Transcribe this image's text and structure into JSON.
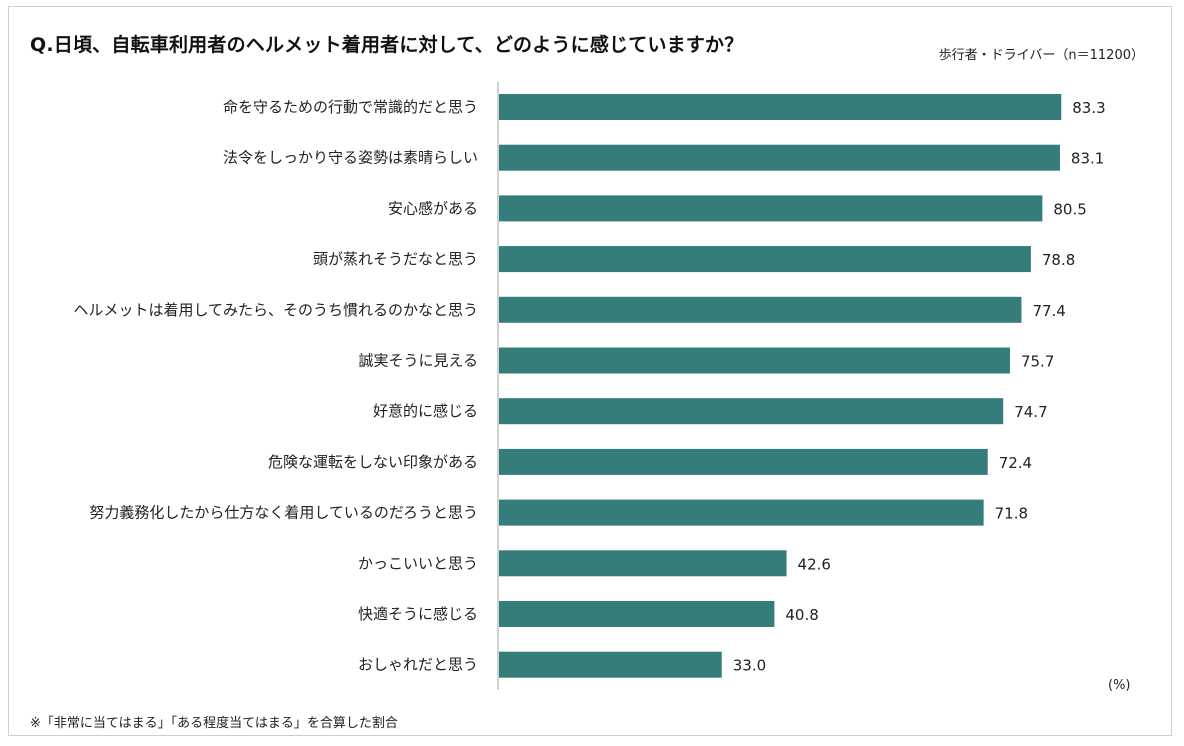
{
  "chart_data": {
    "type": "bar",
    "orientation": "horizontal",
    "title": "Q.日頃、自転車利用者のヘルメット着用者に対して、どのように感じていますか？",
    "subtitle": "歩行者・ドライバー（n＝11200）",
    "unit_label": "(%)",
    "footnote": "※「非常に当てはまる」「ある程度当てはまる」を合算した割合",
    "bar_color": "#357d7a",
    "xlim": [
      0,
      100
    ],
    "categories": [
      "命を守るための行動で常識的だと思う",
      "法令をしっかり守る姿勢は素晴らしい",
      "安心感がある",
      "頭が蒸れそうだなと思う",
      "ヘルメットは着用してみたら、そのうち慣れるのかなと思う",
      "誠実そうに見える",
      "好意的に感じる",
      "危険な運転をしない印象がある",
      "努力義務化したから仕方なく着用しているのだろうと思う",
      "かっこいいと思う",
      "快適そうに感じる",
      "おしゃれだと思う"
    ],
    "values": [
      83.3,
      83.1,
      80.5,
      78.8,
      77.4,
      75.7,
      74.7,
      72.4,
      71.8,
      42.6,
      40.8,
      33.0
    ],
    "value_labels": [
      "83.3",
      "83.1",
      "80.5",
      "78.8",
      "77.4",
      "75.7",
      "74.7",
      "72.4",
      "71.8",
      "42.6",
      "40.8",
      "33.0"
    ]
  }
}
